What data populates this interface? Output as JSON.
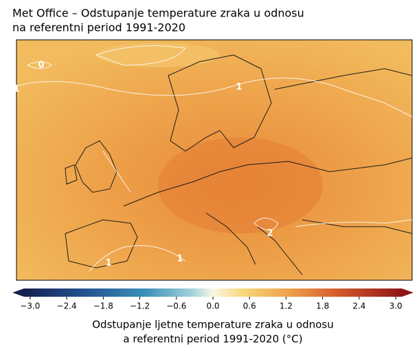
{
  "title": [
    "Met Office – Odstupanje temperature zraka u odnosu",
    "na referentni period 1991-2020"
  ],
  "map": {
    "contour_labels": [
      {
        "value": 0
      },
      {
        "value": 1
      },
      {
        "value": 1
      },
      {
        "value": 2
      },
      {
        "value": 1
      },
      {
        "value": 1
      }
    ]
  },
  "colorbar": {
    "vlim": [
      -3.1,
      3.1
    ],
    "ticks": [
      {
        "value": -3.0,
        "label": "−3.0"
      },
      {
        "value": -2.4,
        "label": "−2.4"
      },
      {
        "value": -1.8,
        "label": "−1.8"
      },
      {
        "value": -1.2,
        "label": "−1.2"
      },
      {
        "value": -0.6,
        "label": "−0.6"
      },
      {
        "value": 0.0,
        "label": "0.0"
      },
      {
        "value": 0.6,
        "label": "0.6"
      },
      {
        "value": 1.2,
        "label": "1.2"
      },
      {
        "value": 1.8,
        "label": "1.8"
      },
      {
        "value": 2.4,
        "label": "2.4"
      },
      {
        "value": 3.0,
        "label": "3.0"
      }
    ],
    "label": [
      "Odstupanje ljetne temperature zraka u odnosu",
      "a referentni period 1991-2020 (°C)"
    ]
  }
}
